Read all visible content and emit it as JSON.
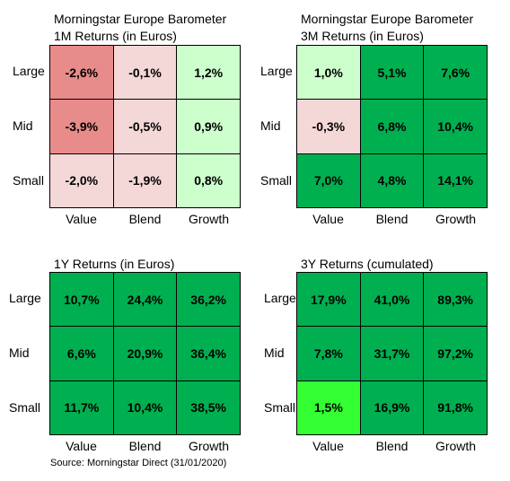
{
  "colors": {
    "deep_red": "#e88b8b",
    "light_pink": "#f4d7d7",
    "light_green": "#ccffcc",
    "green": "#00b050",
    "bright_green": "#33ff33"
  },
  "source": "Source: Morningstar Direct (31/01/2020)",
  "chart_data": [
    {
      "type": "heatmap",
      "title": "Morningstar Europe Barometer",
      "subtitle": "1M Returns (in Euros)",
      "rows": [
        "Large",
        "Mid",
        "Small"
      ],
      "columns": [
        "Value",
        "Blend",
        "Growth"
      ],
      "values": [
        [
          "-2,6%",
          "-0,1%",
          "1,2%"
        ],
        [
          "-3,9%",
          "-0,5%",
          "0,9%"
        ],
        [
          "-2,0%",
          "-1,9%",
          "0,8%"
        ]
      ],
      "cell_colors": [
        [
          "#e88b8b",
          "#f4d7d7",
          "#ccffcc"
        ],
        [
          "#e88b8b",
          "#f4d7d7",
          "#ccffcc"
        ],
        [
          "#f4d7d7",
          "#f4d7d7",
          "#ccffcc"
        ]
      ]
    },
    {
      "type": "heatmap",
      "title": "Morningstar Europe Barometer",
      "subtitle": "3M Returns (in Euros)",
      "rows": [
        "Large",
        "Mid",
        "Small"
      ],
      "columns": [
        "Value",
        "Blend",
        "Growth"
      ],
      "values": [
        [
          "1,0%",
          "5,1%",
          "7,6%"
        ],
        [
          "-0,3%",
          "6,8%",
          "10,4%"
        ],
        [
          "7,0%",
          "4,8%",
          "14,1%"
        ]
      ],
      "cell_colors": [
        [
          "#ccffcc",
          "#00b050",
          "#00b050"
        ],
        [
          "#f4d7d7",
          "#00b050",
          "#00b050"
        ],
        [
          "#00b050",
          "#00b050",
          "#00b050"
        ]
      ]
    },
    {
      "type": "heatmap",
      "title": "",
      "subtitle": "1Y Returns (in Euros)",
      "rows": [
        "Large",
        "Mid",
        "Small"
      ],
      "columns": [
        "Value",
        "Blend",
        "Growth"
      ],
      "values": [
        [
          "10,7%",
          "24,4%",
          "36,2%"
        ],
        [
          "6,6%",
          "20,9%",
          "36,4%"
        ],
        [
          "11,7%",
          "10,4%",
          "38,5%"
        ]
      ],
      "cell_colors": [
        [
          "#00b050",
          "#00b050",
          "#00b050"
        ],
        [
          "#00b050",
          "#00b050",
          "#00b050"
        ],
        [
          "#00b050",
          "#00b050",
          "#00b050"
        ]
      ]
    },
    {
      "type": "heatmap",
      "title": "",
      "subtitle": "3Y Returns (cumulated)",
      "rows": [
        "Large",
        "Mid",
        "Small"
      ],
      "columns": [
        "Value",
        "Blend",
        "Growth"
      ],
      "values": [
        [
          "17,9%",
          "41,0%",
          "89,3%"
        ],
        [
          "7,8%",
          "31,7%",
          "97,2%"
        ],
        [
          "1,5%",
          "16,9%",
          "91,8%"
        ]
      ],
      "cell_colors": [
        [
          "#00b050",
          "#00b050",
          "#00b050"
        ],
        [
          "#00b050",
          "#00b050",
          "#00b050"
        ],
        [
          "#33ff33",
          "#00b050",
          "#00b050"
        ]
      ]
    }
  ]
}
